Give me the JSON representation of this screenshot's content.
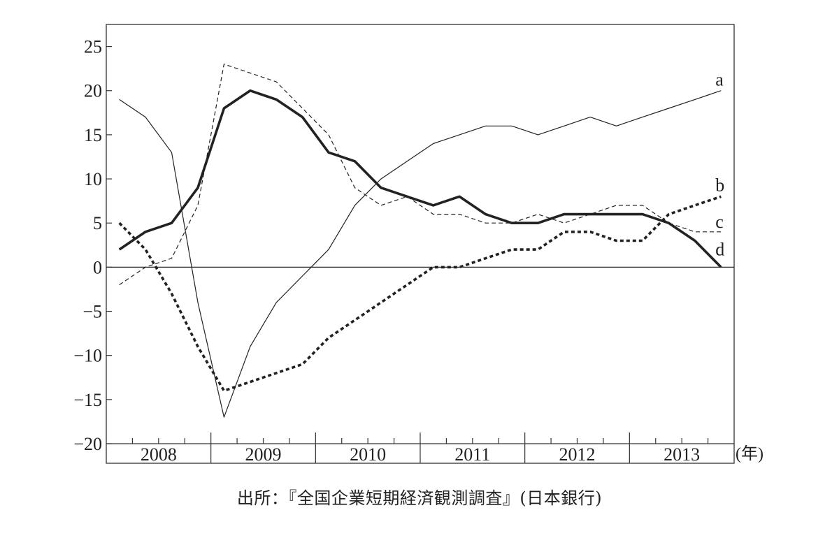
{
  "chart_data": {
    "type": "line",
    "x": [
      "2008Q1",
      "2008Q2",
      "2008Q3",
      "2008Q4",
      "2009Q1",
      "2009Q2",
      "2009Q3",
      "2009Q4",
      "2010Q1",
      "2010Q2",
      "2010Q3",
      "2010Q4",
      "2011Q1",
      "2011Q2",
      "2011Q3",
      "2011Q4",
      "2012Q1",
      "2012Q2",
      "2012Q3",
      "2012Q4",
      "2013Q1",
      "2013Q2",
      "2013Q3",
      "2013Q4"
    ],
    "year_labels": [
      "2008",
      "2009",
      "2010",
      "2011",
      "2012",
      "2013"
    ],
    "x_unit_label": "(年)",
    "ylim": [
      -20,
      27.5
    ],
    "yticks": [
      25,
      20,
      15,
      10,
      5,
      0,
      -5,
      -10,
      -15,
      -20
    ],
    "ytick_labels": [
      "25",
      "20",
      "15",
      "10",
      "5",
      "0",
      "−5",
      "−10",
      "−15",
      "−20"
    ],
    "zero_line": true,
    "grid": false,
    "series": [
      {
        "name": "a",
        "style": "thin-solid",
        "values": [
          19,
          17,
          13,
          -4,
          -17,
          -9,
          -4,
          -1,
          2,
          7,
          10,
          12,
          14,
          15,
          16,
          16,
          15,
          16,
          17,
          16,
          17,
          18,
          19,
          20
        ]
      },
      {
        "name": "b",
        "style": "thick-dotted",
        "values": [
          5,
          2,
          -3,
          -9,
          -14,
          -13,
          -12,
          -11,
          -8,
          -6,
          -4,
          -2,
          0,
          0,
          1,
          2,
          2,
          4,
          4,
          3,
          3,
          6,
          7,
          8
        ]
      },
      {
        "name": "c",
        "style": "thin-dashed",
        "values": [
          -2,
          0,
          1,
          7,
          23,
          22,
          21,
          18,
          15,
          9,
          7,
          8,
          6,
          6,
          5,
          5,
          6,
          5,
          6,
          7,
          7,
          5,
          4,
          4
        ]
      },
      {
        "name": "d",
        "style": "thick-solid",
        "values": [
          2,
          4,
          5,
          9,
          18,
          20,
          19,
          17,
          13,
          12,
          9,
          8,
          7,
          8,
          6,
          5,
          5,
          6,
          6,
          6,
          6,
          5,
          3,
          0
        ]
      }
    ]
  },
  "source_text": "出所：『全国企業短期経済観測調査』(日本銀行)"
}
